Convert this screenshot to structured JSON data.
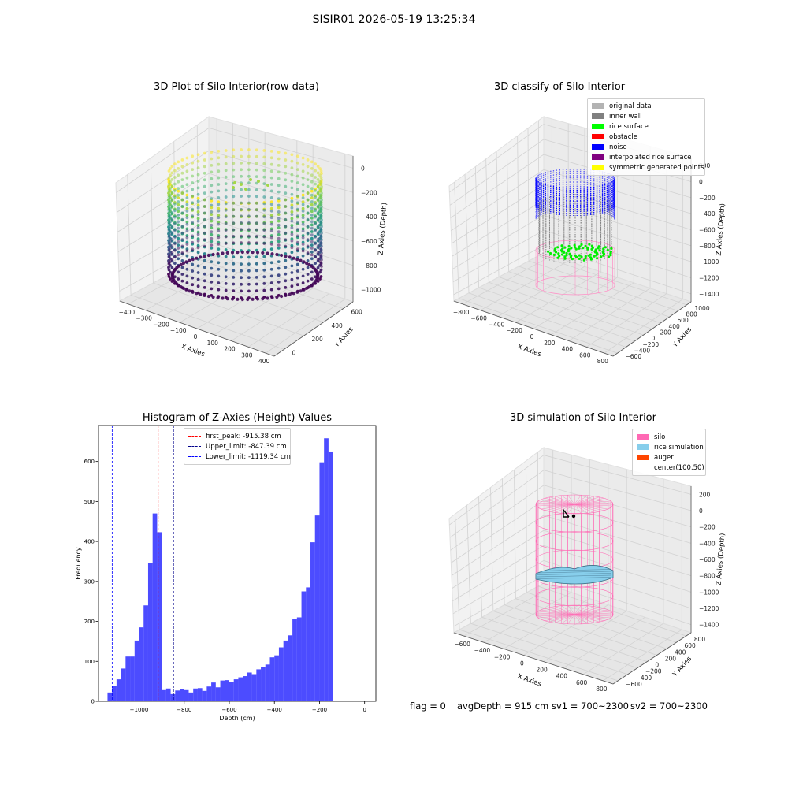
{
  "suptitle": "SISIR01 2026-05-19 13:25:34",
  "chart_data": [
    {
      "type": "scatter3d",
      "title": "3D Plot of Silo Interior(row data)",
      "xlabel": "X Axies",
      "ylabel": "Y Axies",
      "zlabel": "Z Axies (Depth)",
      "x_ticks": [
        "−400",
        "−300",
        "−200",
        "−100",
        "0",
        "100",
        "200",
        "300",
        "400"
      ],
      "y_ticks": [
        "0",
        "200",
        "400",
        "600"
      ],
      "z_ticks": [
        "0",
        "−200",
        "−400",
        "−600",
        "−800",
        "−1000"
      ],
      "colormap": "viridis",
      "grid": true
    },
    {
      "type": "scatter3d",
      "title": "3D classify of Silo Interior",
      "xlabel": "X Axies",
      "ylabel": "Y Axies",
      "zlabel": "Z Axies (Depth)",
      "x_ticks": [
        "−800",
        "−600",
        "−400",
        "−200",
        "0",
        "200",
        "400",
        "600",
        "800"
      ],
      "y_ticks": [
        "−600",
        "−400",
        "−200",
        "0",
        "200",
        "400",
        "600",
        "800",
        "1000"
      ],
      "z_ticks": [
        "200",
        "0",
        "−200",
        "−400",
        "−600",
        "−800",
        "−1000",
        "−1200",
        "−1400"
      ],
      "legend_position": "top-right",
      "legend": [
        {
          "label": "original data",
          "color": "#b3b3b3"
        },
        {
          "label": "inner wall",
          "color": "#808080"
        },
        {
          "label": "rice surface",
          "color": "#00ff00"
        },
        {
          "label": "obstacle",
          "color": "#ff0000"
        },
        {
          "label": "noise",
          "color": "#0000ff"
        },
        {
          "label": "interpolated rice surface",
          "color": "#800080"
        },
        {
          "label": "symmetric generated points",
          "color": "#ffff00"
        }
      ],
      "grid": true
    },
    {
      "type": "bar",
      "title": "Histogram of Z-Axies (Height) Values",
      "xlabel": "Depth (cm)",
      "ylabel": "Frequency",
      "xlim": [
        -1180,
        50
      ],
      "ylim": [
        0,
        690
      ],
      "x_ticks": [
        -1000,
        -800,
        -600,
        -400,
        -200,
        0
      ],
      "x_tick_labels": [
        "−1000",
        "−800",
        "−600",
        "−400",
        "−200",
        "0"
      ],
      "y_ticks": [
        0,
        100,
        200,
        300,
        400,
        500,
        600
      ],
      "bin_width": 20,
      "bin_start": -1140,
      "counts": [
        22,
        38,
        55,
        82,
        112,
        112,
        152,
        185,
        240,
        345,
        470,
        423,
        28,
        32,
        18,
        27,
        30,
        28,
        22,
        32,
        33,
        26,
        37,
        47,
        35,
        52,
        53,
        48,
        55,
        60,
        63,
        72,
        68,
        80,
        85,
        92,
        110,
        115,
        135,
        152,
        165,
        205,
        210,
        275,
        285,
        398,
        465,
        598,
        658,
        625
      ],
      "bar_color": "#0000ff",
      "lines": [
        {
          "label": "first_peak: -915.38 cm",
          "x": -915.38,
          "color": "#ff0000"
        },
        {
          "label": "Upper_limit: -847.39 cm",
          "x": -847.39,
          "color": "#00008b"
        },
        {
          "label": "Lower_limit: -1119.34 cm",
          "x": -1119.34,
          "color": "#0000ff"
        }
      ],
      "legend_position": "upper-center"
    },
    {
      "type": "surface3d",
      "title": "3D simulation of Silo Interior",
      "xlabel": "X Axies",
      "ylabel": "Y Axies",
      "zlabel": "Z Axies (Depth)",
      "x_ticks": [
        "−600",
        "−400",
        "−200",
        "0",
        "200",
        "400",
        "600",
        "800"
      ],
      "y_ticks": [
        "−600",
        "−400",
        "−200",
        "0",
        "200",
        "400",
        "600",
        "800"
      ],
      "z_ticks": [
        "200",
        "0",
        "−200",
        "−400",
        "−600",
        "−800",
        "−1000",
        "−1200",
        "−1400"
      ],
      "legend_position": "top-right",
      "legend": [
        {
          "label": "silo",
          "color": "#ff69b4"
        },
        {
          "label": "rice simulation",
          "color": "#87ceeb"
        },
        {
          "label": "auger",
          "color": "#ff4500"
        },
        {
          "label": "center(100,50)",
          "color": "#ffffff"
        }
      ],
      "grid": true
    }
  ],
  "footer": {
    "flag": "flag = 0",
    "avg": "avgDepth = 915 cm",
    "sv1": "sv1 = 700~2300",
    "sv2": "sv2 = 700~2300"
  }
}
